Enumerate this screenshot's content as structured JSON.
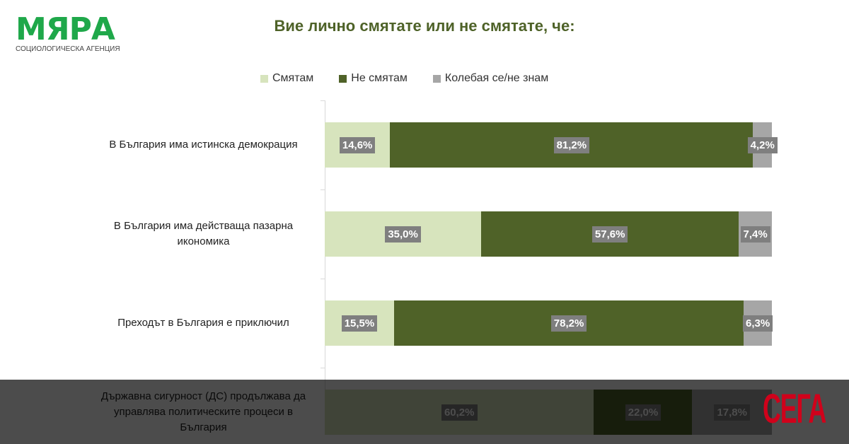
{
  "logo": {
    "name": "МЯРА",
    "subtitle": "СОЦИОЛОГИЧЕСКА АГЕНЦИЯ"
  },
  "watermark": "СЕГА",
  "chart_data": {
    "type": "bar",
    "orientation": "horizontal-stacked-100",
    "title": "Вие лично смятате или не смятате, че:",
    "legend_position": "top",
    "series": [
      {
        "name": "Смятам",
        "color": "#d7e4bd",
        "values": [
          14.6,
          35.0,
          15.5,
          60.2
        ],
        "labels": [
          "14,6%",
          "35,0%",
          "15,5%",
          "60,2%"
        ]
      },
      {
        "name": "Не смятам",
        "color": "#4f6228",
        "values": [
          81.2,
          57.6,
          78.2,
          22.0
        ],
        "labels": [
          "81,2%",
          "57,6%",
          "78,2%",
          "22,0%"
        ]
      },
      {
        "name": "Колебая се/не знам",
        "color": "#a6a6a6",
        "values": [
          4.2,
          7.4,
          6.3,
          17.8
        ],
        "labels": [
          "4,2%",
          "7,4%",
          "6,3%",
          "17,8%"
        ]
      }
    ],
    "categories": [
      "В България има истинска демокрация",
      "В България има действаща пазарна икономика",
      "Преходът в България е приключил",
      "Държавна сигурност (ДС) продължава да управлява политическите процеси в България"
    ],
    "xlim": [
      0,
      100
    ]
  }
}
